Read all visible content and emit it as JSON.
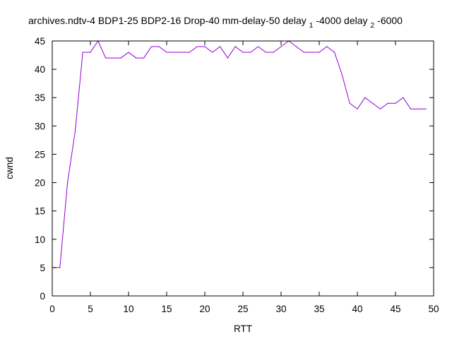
{
  "chart_data": {
    "type": "line",
    "title": {
      "main": "archives.ndtv-4 BDP1-25 BDP2-16 Drop-40 mm-delay-50 delay",
      "sub1": "1",
      "mid": "-4000 delay",
      "sub2": "2",
      "end": "-6000"
    },
    "xlabel": "RTT",
    "ylabel": "cwnd",
    "xlim": [
      0,
      50
    ],
    "ylim": [
      0,
      45
    ],
    "x_ticks": [
      0,
      5,
      10,
      15,
      20,
      25,
      30,
      35,
      40,
      45,
      50
    ],
    "y_ticks": [
      0,
      5,
      10,
      15,
      20,
      25,
      30,
      35,
      40,
      45
    ],
    "x_tick_labels": [
      "0",
      "5",
      "10",
      "15",
      "20",
      "25",
      "30",
      "35",
      "40",
      "45",
      "50"
    ],
    "y_tick_labels": [
      "0",
      "5",
      "10",
      "15",
      "20",
      "25",
      "30",
      "35",
      "40",
      "45"
    ],
    "grid": false,
    "legend": "none",
    "series": [
      {
        "color": "#9400d3",
        "x": [
          0,
          1,
          2,
          3,
          4,
          5,
          6,
          7,
          8,
          9,
          10,
          11,
          12,
          13,
          14,
          15,
          16,
          17,
          18,
          19,
          20,
          21,
          22,
          23,
          24,
          25,
          26,
          27,
          28,
          29,
          30,
          31,
          32,
          33,
          34,
          35,
          36,
          37,
          38,
          39,
          40,
          41,
          42,
          43,
          44,
          45,
          46,
          47,
          48,
          49
        ],
        "y": [
          5,
          5,
          20,
          29,
          43,
          43,
          45,
          42,
          42,
          42,
          43,
          42,
          42,
          44,
          44,
          43,
          43,
          43,
          43,
          44,
          44,
          43,
          44,
          42,
          44,
          43,
          43,
          44,
          43,
          43,
          44,
          45,
          44,
          43,
          43,
          43,
          44,
          43,
          39,
          34,
          33,
          35,
          34,
          33,
          34,
          34,
          35,
          33,
          33,
          33
        ]
      }
    ]
  }
}
